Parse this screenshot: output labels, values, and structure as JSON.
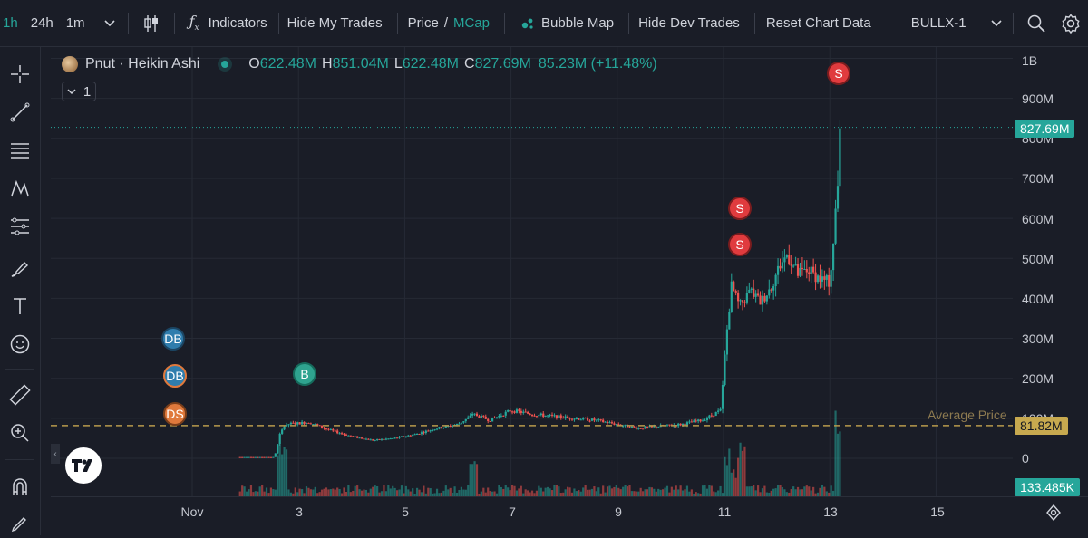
{
  "toolbar": {
    "intervals": [
      "1h",
      "24h",
      "1m"
    ],
    "active_interval": "1h",
    "indicators_label": "Indicators",
    "hide_my_trades": "Hide My Trades",
    "price_label": "Price",
    "price_sep": "/",
    "mcap_label": "MCap",
    "bubble_map": "Bubble Map",
    "hide_dev_trades": "Hide Dev Trades",
    "reset_chart": "Reset Chart Data",
    "account": "BULLX-1"
  },
  "legend": {
    "symbol": "Pnut · Heikin Ashi",
    "o_key": "O",
    "o_val": "622.48M",
    "h_key": "H",
    "h_val": "851.04M",
    "l_key": "L",
    "l_val": "622.48M",
    "c_key": "C",
    "c_val": "827.69M",
    "change": "85.23M (+11.48%)",
    "collapse_count": "1"
  },
  "markers": {
    "db1": "DB",
    "db2": "DB",
    "ds": "DS",
    "b": "B",
    "s1": "S",
    "s2": "S",
    "s3": "S"
  },
  "chart_data": {
    "type": "candlestick",
    "title": "Pnut · Heikin Ashi",
    "y_unit": "Market cap (USD)",
    "y_ticks": [
      "1B",
      "900M",
      "800M",
      "700M",
      "600M",
      "500M",
      "400M",
      "300M",
      "200M",
      "100M",
      "0"
    ],
    "x_ticks": [
      "Nov",
      "3",
      "5",
      "7",
      "9",
      "11",
      "13",
      "15"
    ],
    "ylim": [
      0,
      1000000000
    ],
    "last_price": "827.69M",
    "average_price_label": "Average Price",
    "average_price": "81.82M",
    "last_volume": "133.485K",
    "ohlc": {
      "open": 622480000,
      "high": 851040000,
      "low": 622480000,
      "close": 827690000
    },
    "path": [
      [
        1.9,
        3
      ],
      [
        2.55,
        3
      ],
      [
        2.65,
        60
      ],
      [
        2.75,
        85
      ],
      [
        3.2,
        90
      ],
      [
        3.6,
        70
      ],
      [
        4.0,
        55
      ],
      [
        4.4,
        45
      ],
      [
        4.8,
        50
      ],
      [
        5.2,
        60
      ],
      [
        5.6,
        75
      ],
      [
        6.0,
        85
      ],
      [
        6.3,
        110
      ],
      [
        6.6,
        95
      ],
      [
        7.0,
        120
      ],
      [
        7.4,
        110
      ],
      [
        7.8,
        105
      ],
      [
        8.2,
        100
      ],
      [
        8.6,
        95
      ],
      [
        9.0,
        85
      ],
      [
        9.4,
        75
      ],
      [
        9.8,
        80
      ],
      [
        10.2,
        85
      ],
      [
        10.6,
        95
      ],
      [
        10.95,
        120
      ],
      [
        11.05,
        300
      ],
      [
        11.15,
        430
      ],
      [
        11.3,
        380
      ],
      [
        11.5,
        420
      ],
      [
        11.7,
        390
      ],
      [
        11.9,
        430
      ],
      [
        12.05,
        480
      ],
      [
        12.2,
        510
      ],
      [
        12.4,
        460
      ],
      [
        12.6,
        470
      ],
      [
        12.8,
        450
      ],
      [
        13.0,
        440
      ],
      [
        13.08,
        560
      ],
      [
        13.15,
        690
      ],
      [
        13.2,
        827.69
      ]
    ],
    "grid": true
  },
  "colors": {
    "up": "#26a69a",
    "down": "#ef5350",
    "bg": "#1a1d27",
    "grid": "#262a35",
    "avg_line": "#b89a4c",
    "accent": "#26a69a"
  }
}
